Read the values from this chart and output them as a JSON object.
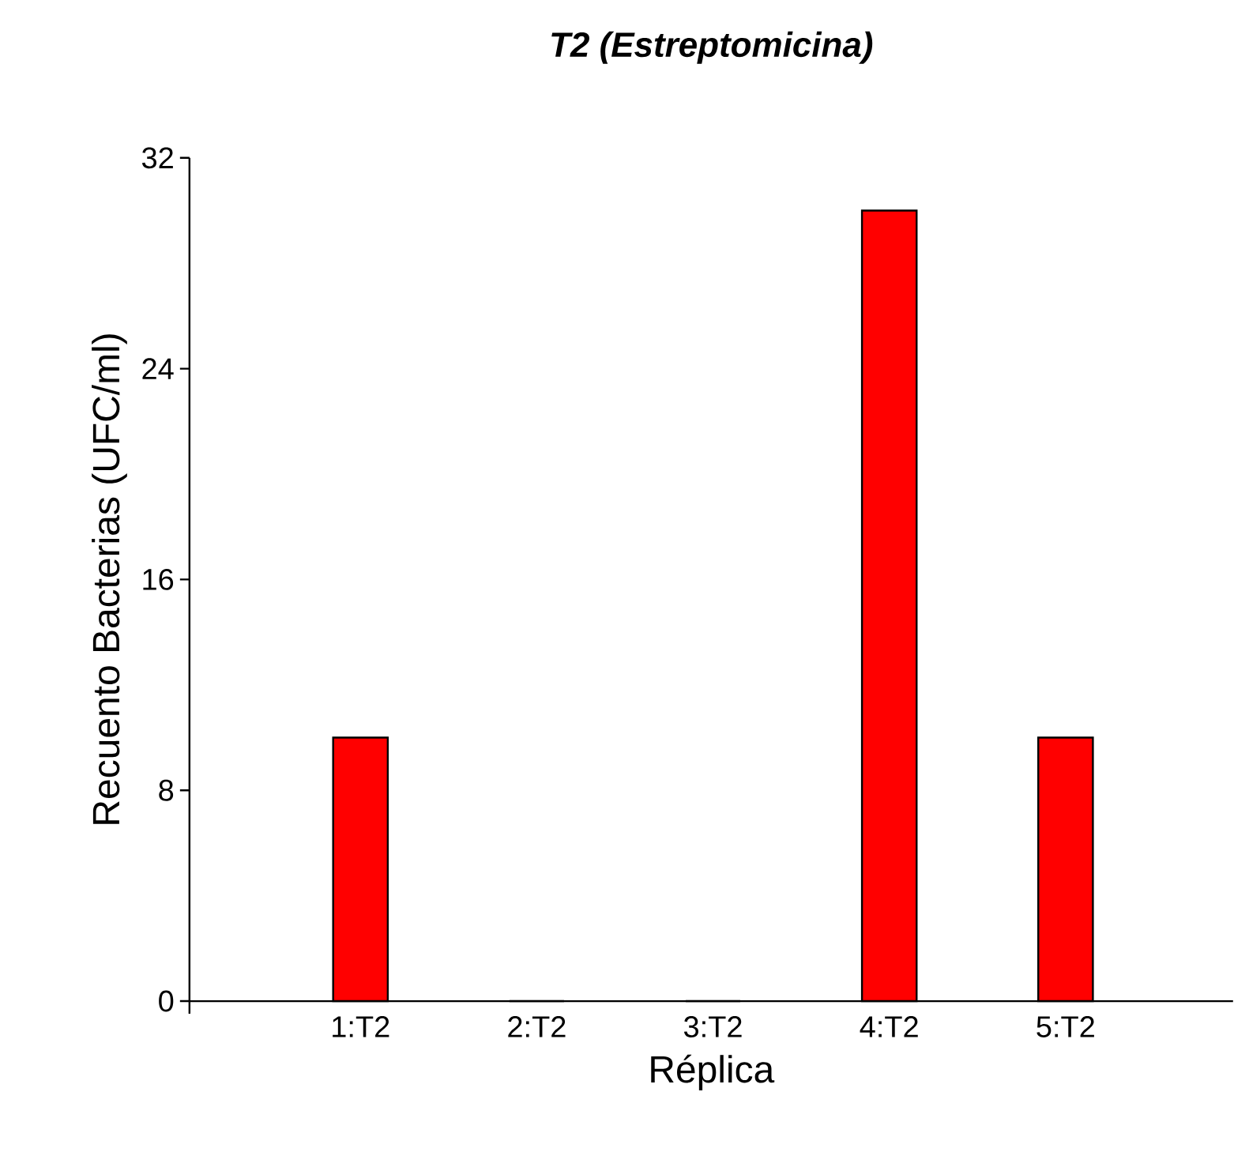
{
  "chart_data": {
    "type": "bar",
    "title": "T2 (Estreptomicina)",
    "xlabel": "Réplica",
    "ylabel": "Recuento Bacterias (UFC/ml)",
    "categories": [
      "1:T2",
      "2:T2",
      "3:T2",
      "4:T2",
      "5:T2"
    ],
    "values": [
      10,
      0,
      0,
      30,
      10
    ],
    "color": "#ff0000",
    "ylim": [
      0,
      32
    ],
    "yticks": [
      0,
      8,
      16,
      24,
      32
    ],
    "grid": false
  }
}
